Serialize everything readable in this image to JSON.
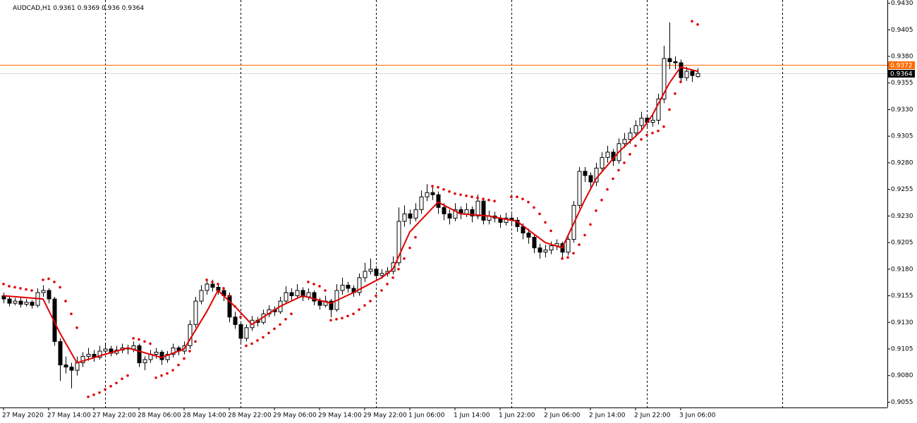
{
  "chart_data": {
    "type": "candlestick",
    "title": "AUDCAD,H1",
    "ohlc": [
      [
        0.9155,
        0.9158,
        0.9148,
        0.9152
      ],
      [
        0.9152,
        0.9155,
        0.9145,
        0.9148
      ],
      [
        0.9148,
        0.9153,
        0.9146,
        0.915
      ],
      [
        0.915,
        0.9153,
        0.9144,
        0.9147
      ],
      [
        0.9147,
        0.9152,
        0.9145,
        0.9149
      ],
      [
        0.9149,
        0.9151,
        0.9143,
        0.9146
      ],
      [
        0.9146,
        0.9162,
        0.9144,
        0.9158
      ],
      [
        0.9158,
        0.9165,
        0.9154,
        0.916
      ],
      [
        0.916,
        0.9162,
        0.9148,
        0.9152
      ],
      [
        0.9152,
        0.9154,
        0.9108,
        0.9112
      ],
      [
        0.9112,
        0.9115,
        0.9075,
        0.909
      ],
      [
        0.909,
        0.9098,
        0.9082,
        0.9088
      ],
      [
        0.9088,
        0.9092,
        0.9068,
        0.9085
      ],
      [
        0.9085,
        0.9098,
        0.908,
        0.9092
      ],
      [
        0.9092,
        0.9102,
        0.9088,
        0.9098
      ],
      [
        0.9098,
        0.9106,
        0.9094,
        0.91
      ],
      [
        0.91,
        0.9104,
        0.9093,
        0.9097
      ],
      [
        0.9097,
        0.9108,
        0.9095,
        0.9103
      ],
      [
        0.9103,
        0.911,
        0.91,
        0.9105
      ],
      [
        0.9105,
        0.9108,
        0.9098,
        0.9101
      ],
      [
        0.9101,
        0.9108,
        0.9099,
        0.9104
      ],
      [
        0.9104,
        0.911,
        0.9101,
        0.9106
      ],
      [
        0.9106,
        0.9109,
        0.91,
        0.9105
      ],
      [
        0.9105,
        0.9112,
        0.9102,
        0.9108
      ],
      [
        0.9108,
        0.911,
        0.9088,
        0.9092
      ],
      [
        0.9092,
        0.9098,
        0.9085,
        0.9095
      ],
      [
        0.9095,
        0.9104,
        0.9092,
        0.91
      ],
      [
        0.91,
        0.9106,
        0.9096,
        0.9102
      ],
      [
        0.9102,
        0.9104,
        0.909,
        0.9095
      ],
      [
        0.9095,
        0.9103,
        0.9092,
        0.91
      ],
      [
        0.91,
        0.911,
        0.9097,
        0.9106
      ],
      [
        0.9106,
        0.9108,
        0.9099,
        0.9103
      ],
      [
        0.9103,
        0.9112,
        0.91,
        0.9108
      ],
      [
        0.9108,
        0.9132,
        0.9105,
        0.9128
      ],
      [
        0.9128,
        0.9154,
        0.9125,
        0.915
      ],
      [
        0.915,
        0.9165,
        0.9147,
        0.916
      ],
      [
        0.916,
        0.917,
        0.9156,
        0.9166
      ],
      [
        0.9166,
        0.917,
        0.9159,
        0.9163
      ],
      [
        0.9163,
        0.9166,
        0.9156,
        0.916
      ],
      [
        0.916,
        0.9163,
        0.915,
        0.9155
      ],
      [
        0.9155,
        0.9158,
        0.913,
        0.9135
      ],
      [
        0.9135,
        0.914,
        0.9124,
        0.9128
      ],
      [
        0.9128,
        0.9131,
        0.911,
        0.9115
      ],
      [
        0.9115,
        0.9128,
        0.9112,
        0.9125
      ],
      [
        0.9125,
        0.9136,
        0.9122,
        0.9132
      ],
      [
        0.9132,
        0.9135,
        0.9126,
        0.913
      ],
      [
        0.913,
        0.9142,
        0.9128,
        0.9138
      ],
      [
        0.9138,
        0.9146,
        0.9135,
        0.9142
      ],
      [
        0.9142,
        0.9145,
        0.9136,
        0.914
      ],
      [
        0.914,
        0.9154,
        0.9138,
        0.915
      ],
      [
        0.915,
        0.9164,
        0.9147,
        0.9158
      ],
      [
        0.9158,
        0.9162,
        0.9151,
        0.9155
      ],
      [
        0.9155,
        0.9166,
        0.9152,
        0.916
      ],
      [
        0.916,
        0.9163,
        0.915,
        0.9154
      ],
      [
        0.9154,
        0.9162,
        0.9151,
        0.9158
      ],
      [
        0.9158,
        0.916,
        0.9146,
        0.915
      ],
      [
        0.915,
        0.9153,
        0.9142,
        0.9146
      ],
      [
        0.9146,
        0.9155,
        0.9144,
        0.915
      ],
      [
        0.915,
        0.9152,
        0.9135,
        0.9142
      ],
      [
        0.9142,
        0.9166,
        0.914,
        0.916
      ],
      [
        0.916,
        0.9172,
        0.9156,
        0.9165
      ],
      [
        0.9165,
        0.9168,
        0.9158,
        0.9162
      ],
      [
        0.9162,
        0.9165,
        0.9154,
        0.9158
      ],
      [
        0.9158,
        0.9176,
        0.9155,
        0.9172
      ],
      [
        0.9172,
        0.9186,
        0.9168,
        0.9178
      ],
      [
        0.9178,
        0.919,
        0.9175,
        0.918
      ],
      [
        0.918,
        0.9183,
        0.917,
        0.9174
      ],
      [
        0.9174,
        0.918,
        0.9171,
        0.9176
      ],
      [
        0.9176,
        0.9182,
        0.9173,
        0.9178
      ],
      [
        0.9178,
        0.9192,
        0.9175,
        0.9186
      ],
      [
        0.9186,
        0.9238,
        0.9183,
        0.9225
      ],
      [
        0.9225,
        0.924,
        0.922,
        0.9232
      ],
      [
        0.9232,
        0.9236,
        0.9222,
        0.9228
      ],
      [
        0.9228,
        0.9242,
        0.9225,
        0.9236
      ],
      [
        0.9236,
        0.9254,
        0.9232,
        0.9248
      ],
      [
        0.9248,
        0.926,
        0.9244,
        0.9252
      ],
      [
        0.9252,
        0.9258,
        0.9245,
        0.925
      ],
      [
        0.925,
        0.9253,
        0.9232,
        0.9238
      ],
      [
        0.9238,
        0.9242,
        0.9226,
        0.9232
      ],
      [
        0.9232,
        0.9236,
        0.9222,
        0.9228
      ],
      [
        0.9228,
        0.9242,
        0.9225,
        0.9236
      ],
      [
        0.9236,
        0.9239,
        0.9227,
        0.9232
      ],
      [
        0.9232,
        0.9242,
        0.9229,
        0.9236
      ],
      [
        0.9236,
        0.9239,
        0.9224,
        0.923
      ],
      [
        0.923,
        0.925,
        0.9227,
        0.9244
      ],
      [
        0.9244,
        0.9246,
        0.9222,
        0.9226
      ],
      [
        0.9226,
        0.9235,
        0.9222,
        0.923
      ],
      [
        0.923,
        0.9234,
        0.9224,
        0.9228
      ],
      [
        0.9228,
        0.9231,
        0.9219,
        0.9224
      ],
      [
        0.9224,
        0.9233,
        0.9221,
        0.9228
      ],
      [
        0.9228,
        0.9232,
        0.9221,
        0.9226
      ],
      [
        0.9226,
        0.9229,
        0.9215,
        0.922
      ],
      [
        0.922,
        0.9223,
        0.9208,
        0.9214
      ],
      [
        0.9214,
        0.9218,
        0.9204,
        0.921
      ],
      [
        0.921,
        0.9213,
        0.9195,
        0.92
      ],
      [
        0.92,
        0.9204,
        0.919,
        0.9196
      ],
      [
        0.9196,
        0.9203,
        0.9191,
        0.9198
      ],
      [
        0.9198,
        0.9206,
        0.9194,
        0.9202
      ],
      [
        0.9202,
        0.9208,
        0.9198,
        0.9204
      ],
      [
        0.9204,
        0.9206,
        0.9191,
        0.9196
      ],
      [
        0.9196,
        0.9212,
        0.9193,
        0.9208
      ],
      [
        0.9208,
        0.9244,
        0.9205,
        0.924
      ],
      [
        0.924,
        0.9276,
        0.9237,
        0.9272
      ],
      [
        0.9272,
        0.9276,
        0.9262,
        0.9268
      ],
      [
        0.9268,
        0.9271,
        0.9256,
        0.9262
      ],
      [
        0.9262,
        0.928,
        0.9258,
        0.9275
      ],
      [
        0.9275,
        0.929,
        0.9271,
        0.9285
      ],
      [
        0.9285,
        0.9296,
        0.928,
        0.929
      ],
      [
        0.929,
        0.9293,
        0.9277,
        0.9282
      ],
      [
        0.9282,
        0.9303,
        0.9279,
        0.9298
      ],
      [
        0.9298,
        0.9308,
        0.9294,
        0.9302
      ],
      [
        0.9302,
        0.9313,
        0.9298,
        0.9308
      ],
      [
        0.9308,
        0.932,
        0.9304,
        0.9315
      ],
      [
        0.9315,
        0.9328,
        0.9311,
        0.9322
      ],
      [
        0.9322,
        0.9325,
        0.9312,
        0.9318
      ],
      [
        0.9318,
        0.9326,
        0.9314,
        0.932
      ],
      [
        0.932,
        0.9345,
        0.9316,
        0.934
      ],
      [
        0.934,
        0.939,
        0.9336,
        0.9378
      ],
      [
        0.9378,
        0.9412,
        0.9368,
        0.9375
      ],
      [
        0.9375,
        0.938,
        0.9368,
        0.9374
      ],
      [
        0.9374,
        0.9377,
        0.9355,
        0.936
      ],
      [
        0.936,
        0.937,
        0.9357,
        0.9366
      ],
      [
        0.9366,
        0.9368,
        0.9356,
        0.9362
      ],
      [
        0.9361,
        0.9369,
        0.936,
        0.9364
      ]
    ],
    "xlim": [
      -0.625,
      156.625
    ],
    "xticks": [
      {
        "value": 0,
        "label": "27 May 2020"
      },
      {
        "value": 8,
        "label": "27 May 14:00"
      },
      {
        "value": 16,
        "label": "27 May 22:00"
      },
      {
        "value": 24,
        "label": "28 May 06:00"
      },
      {
        "value": 32,
        "label": "28 May 14:00"
      },
      {
        "value": 40,
        "label": "28 May 22:00"
      },
      {
        "value": 48,
        "label": "29 May 06:00"
      },
      {
        "value": 56,
        "label": "29 May 14:00"
      },
      {
        "value": 64,
        "label": "29 May 22:00"
      },
      {
        "value": 72,
        "label": "1 Jun 06:00"
      },
      {
        "value": 80,
        "label": "1 Jun 14:00"
      },
      {
        "value": 88,
        "label": "1 Jun 22:00"
      },
      {
        "value": 96,
        "label": "2 Jun 06:00"
      },
      {
        "value": 104,
        "label": "2 Jun 14:00"
      },
      {
        "value": 112,
        "label": "2 Jun 22:00"
      },
      {
        "value": 120,
        "label": "3 Jun 06:00"
      }
    ],
    "ylim": [
      0.905,
      0.9433
    ],
    "yticks": [
      {
        "value": 0.943,
        "label": "0.9430"
      },
      0.9405,
      {
        "value": 0.938,
        "label": "0.9380"
      },
      0.9355,
      {
        "value": 0.933,
        "label": "0.9330"
      },
      0.9305,
      {
        "value": 0.928,
        "label": "0.9280"
      },
      0.9255,
      {
        "value": 0.923,
        "label": "0.9230"
      },
      0.9205,
      {
        "value": 0.918,
        "label": "0.9180"
      },
      0.9155,
      {
        "value": 0.913,
        "label": "0.9130"
      },
      0.9105,
      {
        "value": 0.908,
        "label": "0.9080"
      },
      0.9055
    ],
    "separators": [
      18,
      42,
      66,
      90,
      114,
      138
    ],
    "bull_color": "#ffffff",
    "bear_color": "#000000",
    "ma": {
      "color": "#e00000",
      "x": [
        0,
        7,
        10,
        13,
        18,
        22,
        28,
        32,
        36,
        38,
        41,
        44,
        49,
        53,
        58,
        62,
        67,
        69,
        72,
        77,
        81,
        86,
        91,
        96,
        99,
        103,
        105,
        109,
        113,
        115,
        118,
        120,
        123
      ],
      "values": [
        0.9155,
        0.9152,
        0.912,
        0.9092,
        0.91,
        0.9106,
        0.9097,
        0.9105,
        0.914,
        0.916,
        0.9145,
        0.9128,
        0.9145,
        0.9155,
        0.9148,
        0.9158,
        0.9172,
        0.918,
        0.9215,
        0.9243,
        0.9232,
        0.923,
        0.9225,
        0.9205,
        0.92,
        0.9245,
        0.9265,
        0.929,
        0.931,
        0.9325,
        0.9355,
        0.937,
        0.9366
      ]
    },
    "sar": {
      "color": "#e00000",
      "x": [
        0,
        1,
        2,
        3,
        4,
        5,
        7,
        8,
        9,
        10,
        11,
        12,
        13,
        15,
        16,
        17,
        18,
        19,
        20,
        21,
        22,
        23,
        24,
        25,
        26,
        27,
        28,
        29,
        30,
        31,
        32,
        33,
        34,
        36,
        37,
        38,
        39,
        40,
        41,
        42,
        43,
        44,
        45,
        46,
        47,
        48,
        49,
        50,
        51,
        54,
        55,
        56,
        57,
        58,
        59,
        60,
        61,
        62,
        63,
        64,
        65,
        66,
        67,
        68,
        69,
        70,
        71,
        72,
        73,
        76,
        77,
        78,
        79,
        80,
        81,
        82,
        83,
        84,
        85,
        86,
        87,
        90,
        91,
        92,
        93,
        94,
        95,
        96,
        97,
        99,
        100,
        101,
        102,
        103,
        104,
        105,
        106,
        107,
        108,
        109,
        110,
        111,
        112,
        113,
        114,
        115,
        116,
        117,
        118,
        119,
        120,
        122,
        123
      ],
      "values": [
        0.9166,
        0.9164,
        0.9163,
        0.9162,
        0.9161,
        0.916,
        0.917,
        0.9171,
        0.9168,
        0.9163,
        0.915,
        0.9138,
        0.9125,
        0.906,
        0.9062,
        0.9064,
        0.9067,
        0.907,
        0.9073,
        0.9077,
        0.908,
        0.9115,
        0.9114,
        0.9112,
        0.911,
        0.9078,
        0.908,
        0.9082,
        0.9085,
        0.909,
        0.9096,
        0.9103,
        0.9112,
        0.917,
        0.9168,
        0.9166,
        0.9162,
        0.9155,
        0.9145,
        0.9135,
        0.9108,
        0.911,
        0.9113,
        0.9116,
        0.912,
        0.9124,
        0.9128,
        0.9133,
        0.9138,
        0.9168,
        0.9166,
        0.9164,
        0.916,
        0.9132,
        0.9133,
        0.9134,
        0.9136,
        0.9138,
        0.9142,
        0.9146,
        0.915,
        0.9155,
        0.916,
        0.9166,
        0.9172,
        0.918,
        0.919,
        0.92,
        0.921,
        0.9258,
        0.9257,
        0.9255,
        0.9253,
        0.9251,
        0.925,
        0.9249,
        0.9248,
        0.9247,
        0.9246,
        0.9245,
        0.9244,
        0.9248,
        0.9248,
        0.9246,
        0.9243,
        0.9238,
        0.9232,
        0.9224,
        0.9216,
        0.919,
        0.9191,
        0.9195,
        0.9203,
        0.9212,
        0.9222,
        0.9235,
        0.9245,
        0.9255,
        0.9265,
        0.9273,
        0.928,
        0.9288,
        0.9296,
        0.9302,
        0.9306,
        0.9308,
        0.931,
        0.9314,
        0.933,
        0.9345,
        0.9356,
        0.9413,
        0.941
      ]
    },
    "price_lines": [
      {
        "value": 0.9372,
        "color": "#ff6a00",
        "text_color": "#ffffff"
      },
      {
        "value": 0.9364,
        "color": "#000000",
        "text_color": "#ffffff",
        "line_color": "#b0b0b0"
      }
    ]
  }
}
